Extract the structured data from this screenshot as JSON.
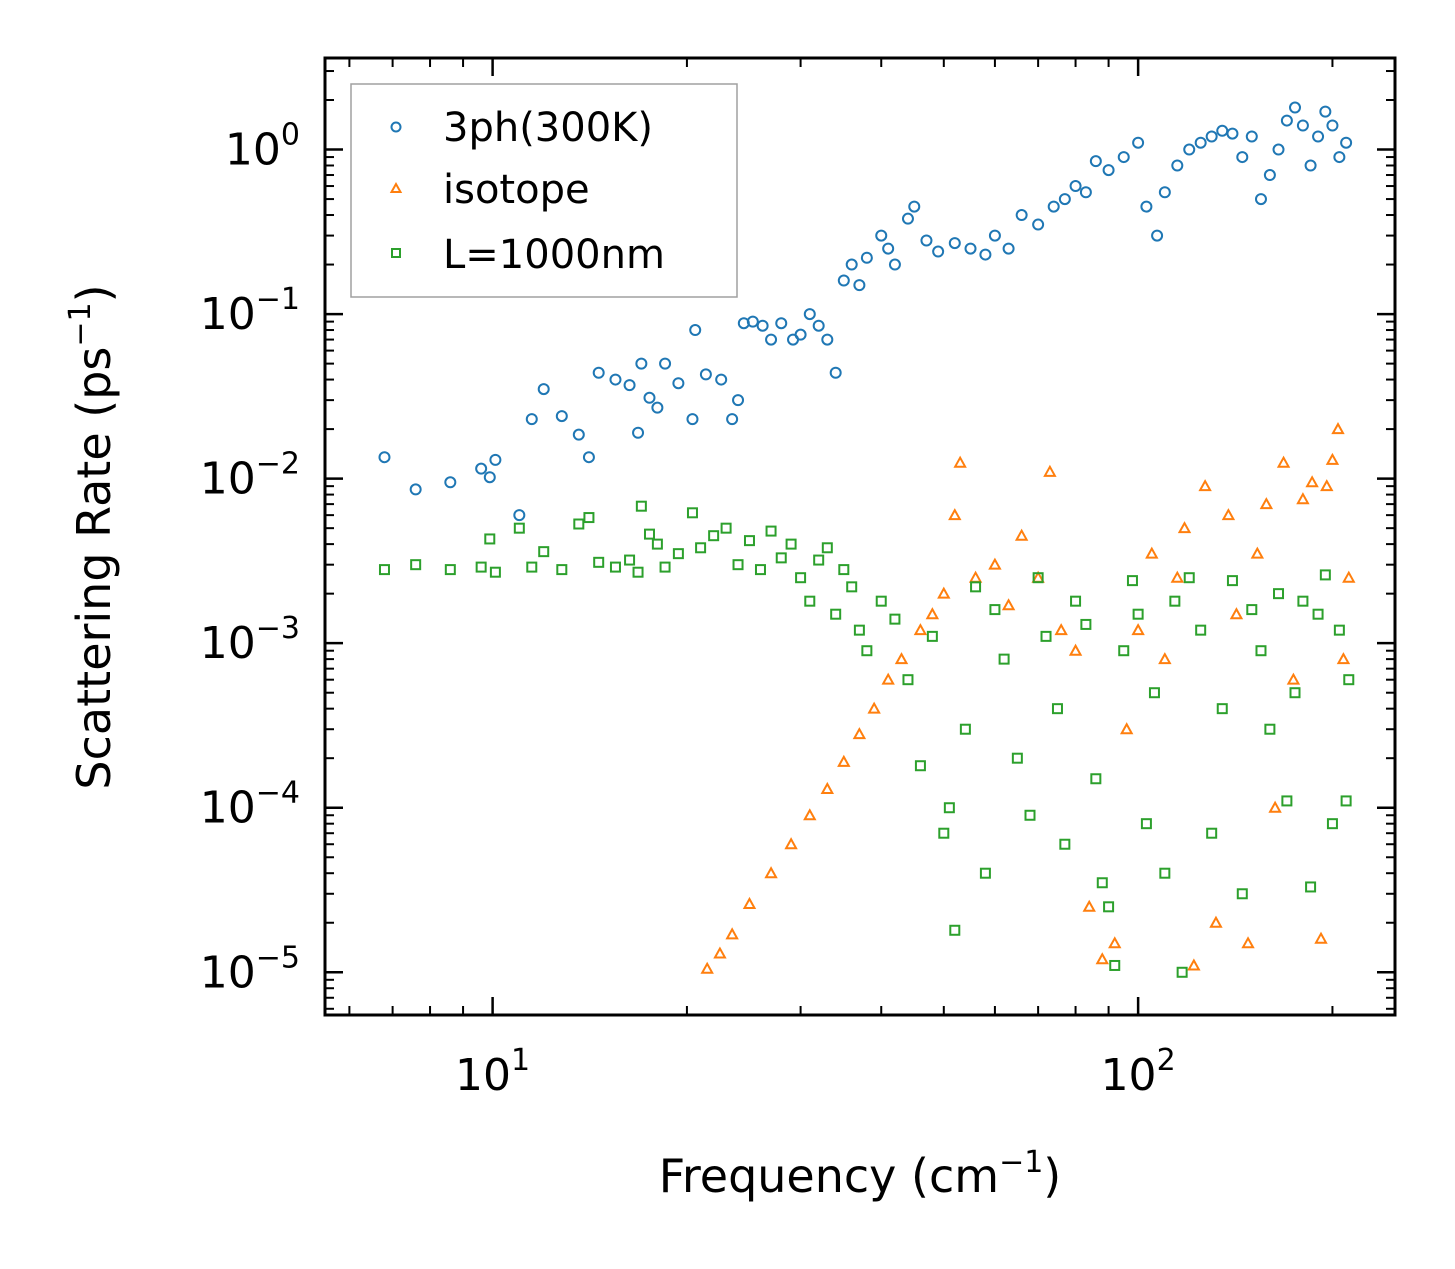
{
  "chart_data": {
    "type": "scatter",
    "title": "",
    "xlabel": "Frequency (cm",
    "xlabel_sup": "−1",
    "xlabel_suffix": ")",
    "ylabel": "Scattering Rate (ps",
    "ylabel_sup": "−1",
    "ylabel_suffix": ")",
    "xscale": "log",
    "yscale": "log",
    "xlim": [
      5.5,
      250
    ],
    "ylim": [
      5.5e-06,
      3.6
    ],
    "x_ticks": [
      {
        "value": 10,
        "base": "10",
        "exp": "1"
      },
      {
        "value": 100,
        "base": "10",
        "exp": "2"
      }
    ],
    "y_ticks": [
      {
        "value": 1,
        "base": "10",
        "exp": "0"
      },
      {
        "value": 0.1,
        "base": "10",
        "exp": "−1"
      },
      {
        "value": 0.01,
        "base": "10",
        "exp": "−2"
      },
      {
        "value": 0.001,
        "base": "10",
        "exp": "−3"
      },
      {
        "value": 0.0001,
        "base": "10",
        "exp": "−4"
      },
      {
        "value": 1e-05,
        "base": "10",
        "exp": "−5"
      }
    ],
    "legend_position": "top-left",
    "series": [
      {
        "name": "3ph(300K)",
        "marker": "circle",
        "color": "#1f77b4",
        "points": [
          [
            6.8,
            0.0135
          ],
          [
            7.6,
            0.0086
          ],
          [
            8.6,
            0.0095
          ],
          [
            9.6,
            0.0115
          ],
          [
            9.9,
            0.0102
          ],
          [
            10.1,
            0.013
          ],
          [
            11,
            0.006
          ],
          [
            11.5,
            0.023
          ],
          [
            12,
            0.035
          ],
          [
            12.8,
            0.024
          ],
          [
            13.6,
            0.0185
          ],
          [
            14.1,
            0.0135
          ],
          [
            14.6,
            0.044
          ],
          [
            15.5,
            0.04
          ],
          [
            16.3,
            0.037
          ],
          [
            16.8,
            0.019
          ],
          [
            17,
            0.05
          ],
          [
            17.5,
            0.031
          ],
          [
            18,
            0.027
          ],
          [
            18.5,
            0.05
          ],
          [
            19.4,
            0.038
          ],
          [
            20.4,
            0.023
          ],
          [
            20.6,
            0.08
          ],
          [
            21.4,
            0.043
          ],
          [
            22.6,
            0.04
          ],
          [
            23.5,
            0.023
          ],
          [
            24,
            0.03
          ],
          [
            24.5,
            0.088
          ],
          [
            25.3,
            0.09
          ],
          [
            26.2,
            0.085
          ],
          [
            27,
            0.07
          ],
          [
            28,
            0.088
          ],
          [
            29.2,
            0.07
          ],
          [
            30,
            0.075
          ],
          [
            31,
            0.1
          ],
          [
            32,
            0.085
          ],
          [
            33,
            0.07
          ],
          [
            34,
            0.044
          ],
          [
            35,
            0.16
          ],
          [
            36,
            0.2
          ],
          [
            37,
            0.15
          ],
          [
            38,
            0.22
          ],
          [
            40,
            0.3
          ],
          [
            41,
            0.25
          ],
          [
            42,
            0.2
          ],
          [
            44,
            0.38
          ],
          [
            45,
            0.45
          ],
          [
            47,
            0.28
          ],
          [
            49,
            0.24
          ],
          [
            52,
            0.27
          ],
          [
            55,
            0.25
          ],
          [
            58,
            0.23
          ],
          [
            60,
            0.3
          ],
          [
            63,
            0.25
          ],
          [
            66,
            0.4
          ],
          [
            70,
            0.35
          ],
          [
            74,
            0.45
          ],
          [
            77,
            0.5
          ],
          [
            80,
            0.6
          ],
          [
            83,
            0.55
          ],
          [
            86,
            0.85
          ],
          [
            90,
            0.75
          ],
          [
            95,
            0.9
          ],
          [
            100,
            1.1
          ],
          [
            103,
            0.45
          ],
          [
            107,
            0.3
          ],
          [
            110,
            0.55
          ],
          [
            115,
            0.8
          ],
          [
            120,
            1.0
          ],
          [
            125,
            1.1
          ],
          [
            130,
            1.2
          ],
          [
            135,
            1.3
          ],
          [
            140,
            1.25
          ],
          [
            145,
            0.9
          ],
          [
            150,
            1.2
          ],
          [
            155,
            0.5
          ],
          [
            160,
            0.7
          ],
          [
            165,
            1.0
          ],
          [
            170,
            1.5
          ],
          [
            175,
            1.8
          ],
          [
            180,
            1.4
          ],
          [
            185,
            0.8
          ],
          [
            190,
            1.2
          ],
          [
            195,
            1.7
          ],
          [
            200,
            1.4
          ],
          [
            205,
            0.9
          ],
          [
            210,
            1.1
          ]
        ]
      },
      {
        "name": "isotope",
        "marker": "triangle",
        "color": "#ff7f0e",
        "points": [
          [
            21.5,
            1.05e-05
          ],
          [
            22.5,
            1.3e-05
          ],
          [
            23.5,
            1.7e-05
          ],
          [
            25,
            2.6e-05
          ],
          [
            27,
            4e-05
          ],
          [
            29,
            6e-05
          ],
          [
            31,
            9e-05
          ],
          [
            33,
            0.00013
          ],
          [
            35,
            0.00019
          ],
          [
            37,
            0.00028
          ],
          [
            39,
            0.0004
          ],
          [
            41,
            0.0006
          ],
          [
            43,
            0.0008
          ],
          [
            46,
            0.0012
          ],
          [
            48,
            0.0015
          ],
          [
            50,
            0.002
          ],
          [
            52,
            0.006
          ],
          [
            53,
            0.0125
          ],
          [
            56,
            0.0025
          ],
          [
            60,
            0.003
          ],
          [
            63,
            0.0017
          ],
          [
            66,
            0.0045
          ],
          [
            70,
            0.0025
          ],
          [
            73,
            0.011
          ],
          [
            76,
            0.0012
          ],
          [
            80,
            0.0009
          ],
          [
            84,
            2.5e-05
          ],
          [
            88,
            1.2e-05
          ],
          [
            92,
            1.5e-05
          ],
          [
            96,
            0.0003
          ],
          [
            100,
            0.0012
          ],
          [
            105,
            0.0035
          ],
          [
            110,
            0.0008
          ],
          [
            115,
            0.0025
          ],
          [
            118,
            0.005
          ],
          [
            122,
            1.1e-05
          ],
          [
            127,
            0.009
          ],
          [
            132,
            2e-05
          ],
          [
            138,
            0.006
          ],
          [
            142,
            0.0015
          ],
          [
            148,
            1.5e-05
          ],
          [
            153,
            0.0035
          ],
          [
            158,
            0.007
          ],
          [
            163,
            0.0001
          ],
          [
            168,
            0.0125
          ],
          [
            174,
            0.0006
          ],
          [
            180,
            0.0075
          ],
          [
            186,
            0.0095
          ],
          [
            192,
            1.6e-05
          ],
          [
            196,
            0.009
          ],
          [
            200,
            0.013
          ],
          [
            204,
            0.02
          ],
          [
            208,
            0.0008
          ],
          [
            212,
            0.0025
          ]
        ]
      },
      {
        "name": "L=1000nm",
        "marker": "square",
        "color": "#2ca02c",
        "points": [
          [
            6.8,
            0.0028
          ],
          [
            7.6,
            0.003
          ],
          [
            8.6,
            0.0028
          ],
          [
            9.6,
            0.0029
          ],
          [
            9.9,
            0.0043
          ],
          [
            10.1,
            0.0027
          ],
          [
            11,
            0.005
          ],
          [
            11.5,
            0.0029
          ],
          [
            12,
            0.0036
          ],
          [
            12.8,
            0.0028
          ],
          [
            13.6,
            0.0053
          ],
          [
            14.1,
            0.0058
          ],
          [
            14.6,
            0.0031
          ],
          [
            15.5,
            0.0029
          ],
          [
            16.3,
            0.0032
          ],
          [
            16.8,
            0.0027
          ],
          [
            17,
            0.0068
          ],
          [
            17.5,
            0.0046
          ],
          [
            18,
            0.004
          ],
          [
            18.5,
            0.0029
          ],
          [
            19.4,
            0.0035
          ],
          [
            20.4,
            0.0062
          ],
          [
            21,
            0.0038
          ],
          [
            22,
            0.0045
          ],
          [
            23,
            0.005
          ],
          [
            24,
            0.003
          ],
          [
            25,
            0.0042
          ],
          [
            26,
            0.0028
          ],
          [
            27,
            0.0048
          ],
          [
            28,
            0.0033
          ],
          [
            29,
            0.004
          ],
          [
            30,
            0.0025
          ],
          [
            31,
            0.0018
          ],
          [
            32,
            0.0032
          ],
          [
            33,
            0.0038
          ],
          [
            34,
            0.0015
          ],
          [
            35,
            0.0028
          ],
          [
            36,
            0.0022
          ],
          [
            37,
            0.0012
          ],
          [
            38,
            0.0009
          ],
          [
            40,
            0.0018
          ],
          [
            42,
            0.0014
          ],
          [
            44,
            0.0006
          ],
          [
            46,
            0.00018
          ],
          [
            48,
            0.0011
          ],
          [
            50,
            7e-05
          ],
          [
            51,
            0.0001
          ],
          [
            52,
            1.8e-05
          ],
          [
            54,
            0.0003
          ],
          [
            56,
            0.0022
          ],
          [
            58,
            4e-05
          ],
          [
            60,
            0.0016
          ],
          [
            62,
            0.0008
          ],
          [
            65,
            0.0002
          ],
          [
            68,
            9e-05
          ],
          [
            70,
            0.0025
          ],
          [
            72,
            0.0011
          ],
          [
            75,
            0.0004
          ],
          [
            77,
            6e-05
          ],
          [
            80,
            0.0018
          ],
          [
            83,
            0.0013
          ],
          [
            86,
            0.00015
          ],
          [
            88,
            3.5e-05
          ],
          [
            90,
            2.5e-05
          ],
          [
            92,
            1.1e-05
          ],
          [
            95,
            0.0009
          ],
          [
            98,
            0.0024
          ],
          [
            100,
            0.0015
          ],
          [
            103,
            8e-05
          ],
          [
            106,
            0.0005
          ],
          [
            110,
            4e-05
          ],
          [
            114,
            0.0018
          ],
          [
            117,
            1e-05
          ],
          [
            120,
            0.0025
          ],
          [
            125,
            0.0012
          ],
          [
            130,
            7e-05
          ],
          [
            135,
            0.0004
          ],
          [
            140,
            0.0024
          ],
          [
            145,
            3e-05
          ],
          [
            150,
            0.0016
          ],
          [
            155,
            0.0009
          ],
          [
            160,
            0.0003
          ],
          [
            165,
            0.002
          ],
          [
            170,
            0.00011
          ],
          [
            175,
            0.0005
          ],
          [
            180,
            0.0018
          ],
          [
            185,
            3.3e-05
          ],
          [
            190,
            0.0015
          ],
          [
            195,
            0.0026
          ],
          [
            200,
            8e-05
          ],
          [
            205,
            0.0012
          ],
          [
            210,
            0.00011
          ],
          [
            212,
            0.0006
          ]
        ]
      }
    ]
  }
}
